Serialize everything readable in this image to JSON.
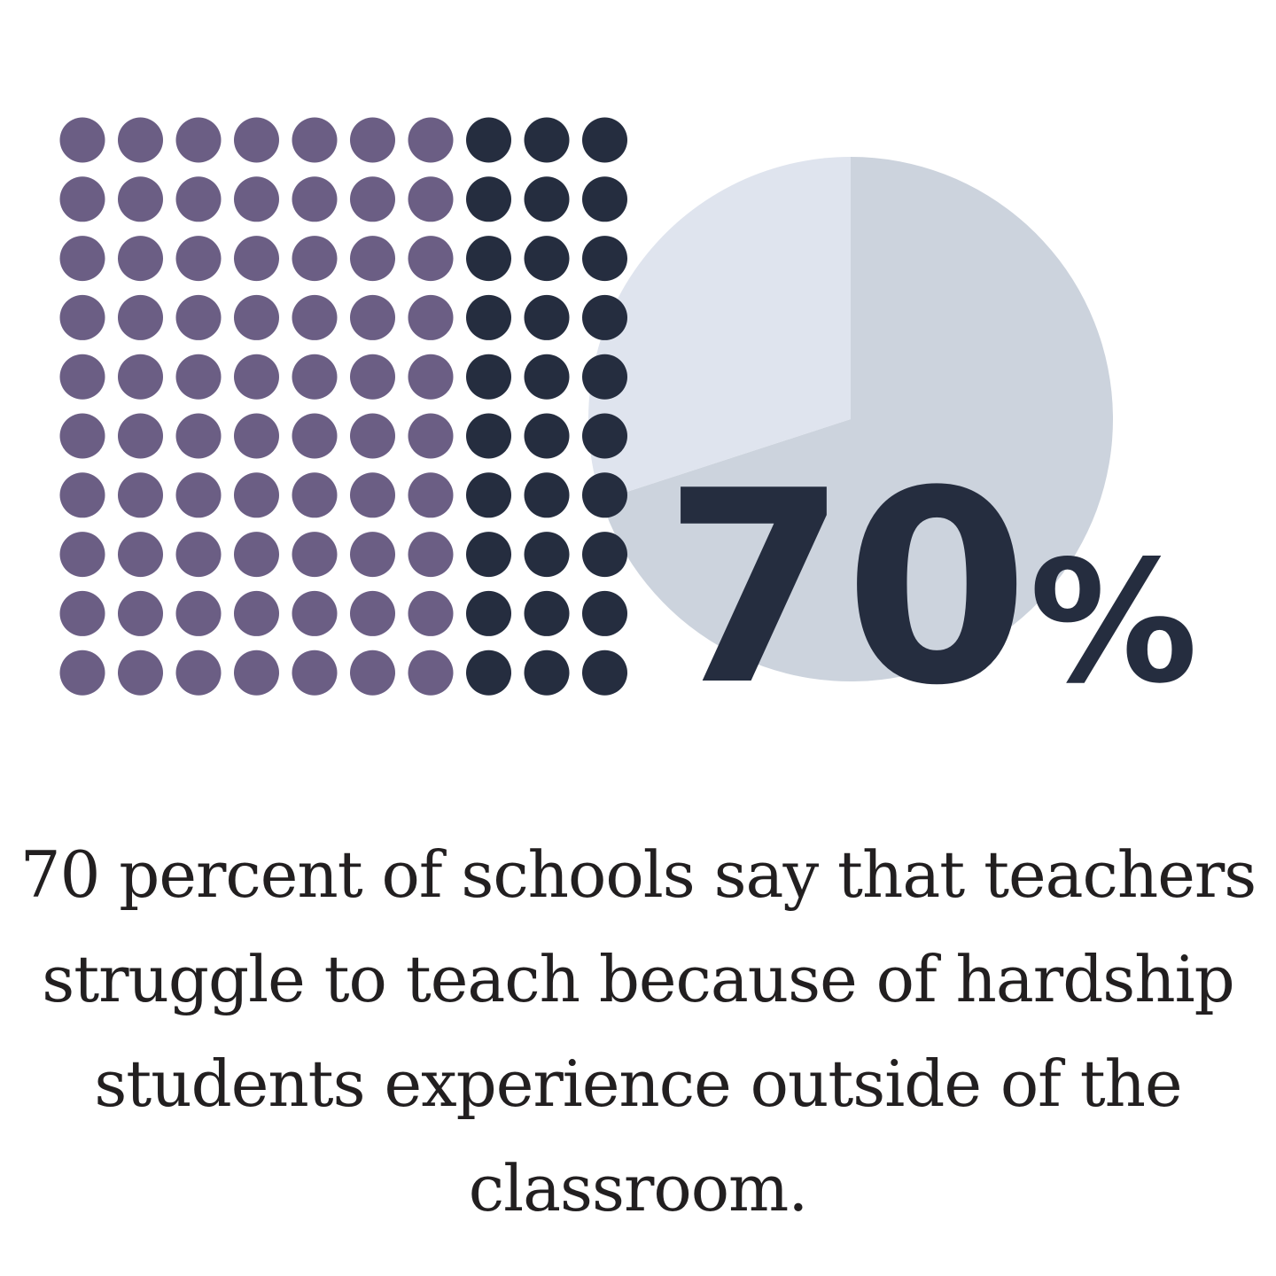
{
  "chart_data": [
    {
      "type": "pie",
      "slices": [
        {
          "value": 70,
          "color": "#ccd3dd"
        },
        {
          "value": 30,
          "color": "#dfe4ee"
        }
      ]
    },
    {
      "type": "waffle",
      "rows": 10,
      "cols": 10,
      "total": 100,
      "highlighted": 70,
      "highlight_color": "#6b5e84",
      "rest_color": "#252d3f"
    }
  ],
  "headline": {
    "value": "70",
    "unit": "%"
  },
  "caption": "70 percent of schools say that teachers struggle to teach because of hardship students experience outside of the classroom."
}
